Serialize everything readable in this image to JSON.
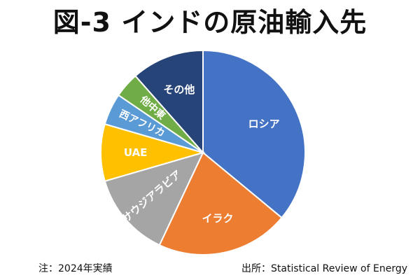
{
  "chart_data": {
    "type": "pie",
    "title": "図-3 インドの原油輸入先",
    "start_angle_deg": 0,
    "direction": "clockwise",
    "legend": "none",
    "slices": [
      {
        "label": "ロシア",
        "value": 36.0,
        "color": "#4472C4"
      },
      {
        "label": "イラク",
        "value": 21.0,
        "color": "#ED7D31"
      },
      {
        "label": "サウジアラビア",
        "value": 13.5,
        "color": "#A5A5A5"
      },
      {
        "label": "UAE",
        "value": 9.0,
        "color": "#FFC000"
      },
      {
        "label": "西アフリカ",
        "value": 5.0,
        "color": "#5B9BD5"
      },
      {
        "label": "他中東",
        "value": 4.0,
        "color": "#70AD47"
      },
      {
        "label": "その他",
        "value": 11.5,
        "color": "#264478"
      }
    ]
  },
  "footnotes": {
    "note": "注：2024年実績",
    "source": "出所：Statistical Review of Energy"
  },
  "colors": {
    "background": "#FFFFFF",
    "slice_border": "#FFFFFF",
    "label_text": "#FFFFFF"
  }
}
